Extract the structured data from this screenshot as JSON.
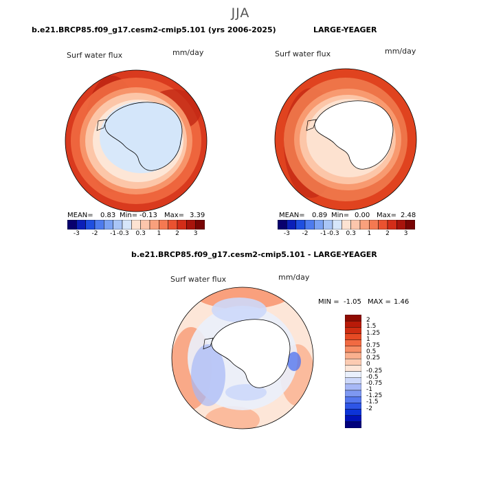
{
  "figure": {
    "season": "JJA"
  },
  "panel_left": {
    "title": "b.e21.BRCP85.f09_g17.cesm2-cmip5.101 (yrs 2006-2025)",
    "variable": "Surf water flux",
    "units": "mm/day",
    "stats": {
      "mean_label": "MEAN=",
      "mean": "0.83",
      "min_label": "Min=",
      "min": "-0.13",
      "max_label": "Max=",
      "max": "3.39"
    }
  },
  "panel_right": {
    "title": "LARGE-YEAGER",
    "variable": "Surf water flux",
    "units": "mm/day",
    "stats": {
      "mean_label": "MEAN=",
      "mean": "0.89",
      "min_label": "Min=",
      "min": "0.00",
      "max_label": "Max=",
      "max": "2.48"
    }
  },
  "panel_diff": {
    "title": "b.e21.BRCP85.f09_g17.cesm2-cmip5.101 - LARGE-YEAGER",
    "variable": "Surf water flux",
    "units": "mm/day",
    "stats": {
      "min_label": "MIN =",
      "min": "-1.05",
      "max_label": "MAX =",
      "max": "1.46"
    }
  },
  "colorbar_top": {
    "colors": [
      "#08006e",
      "#0b1fb8",
      "#1f4fe0",
      "#4d7bee",
      "#7ba2f3",
      "#a9c5f6",
      "#d6e6fa",
      "#fde3d2",
      "#fcc6ac",
      "#f9a07c",
      "#f47951",
      "#ea5230",
      "#d32d18",
      "#a8140c",
      "#780505"
    ],
    "labels": [
      "-3",
      "-2",
      "-1",
      "-0.3",
      "0.3",
      "1",
      "2",
      "3"
    ]
  },
  "colorbar_diff": {
    "colors": [
      "#00007c",
      "#0012b8",
      "#0c33d8",
      "#2e55e6",
      "#5577ee",
      "#7e98f2",
      "#a7b8f6",
      "#cdd8fa",
      "#eaf0fc",
      "#fde6d8",
      "#fccbb2",
      "#fab08e",
      "#f78e66",
      "#f16a42",
      "#e64a24",
      "#cf2d12",
      "#b81a08",
      "#8f0b02"
    ],
    "labels": [
      "2",
      "1.5",
      "1.25",
      "1",
      "0.75",
      "0.5",
      "0.25",
      "0",
      "-0.25",
      "-0.5",
      "-0.75",
      "-1",
      "-1.25",
      "-1.5",
      "-2"
    ]
  }
}
